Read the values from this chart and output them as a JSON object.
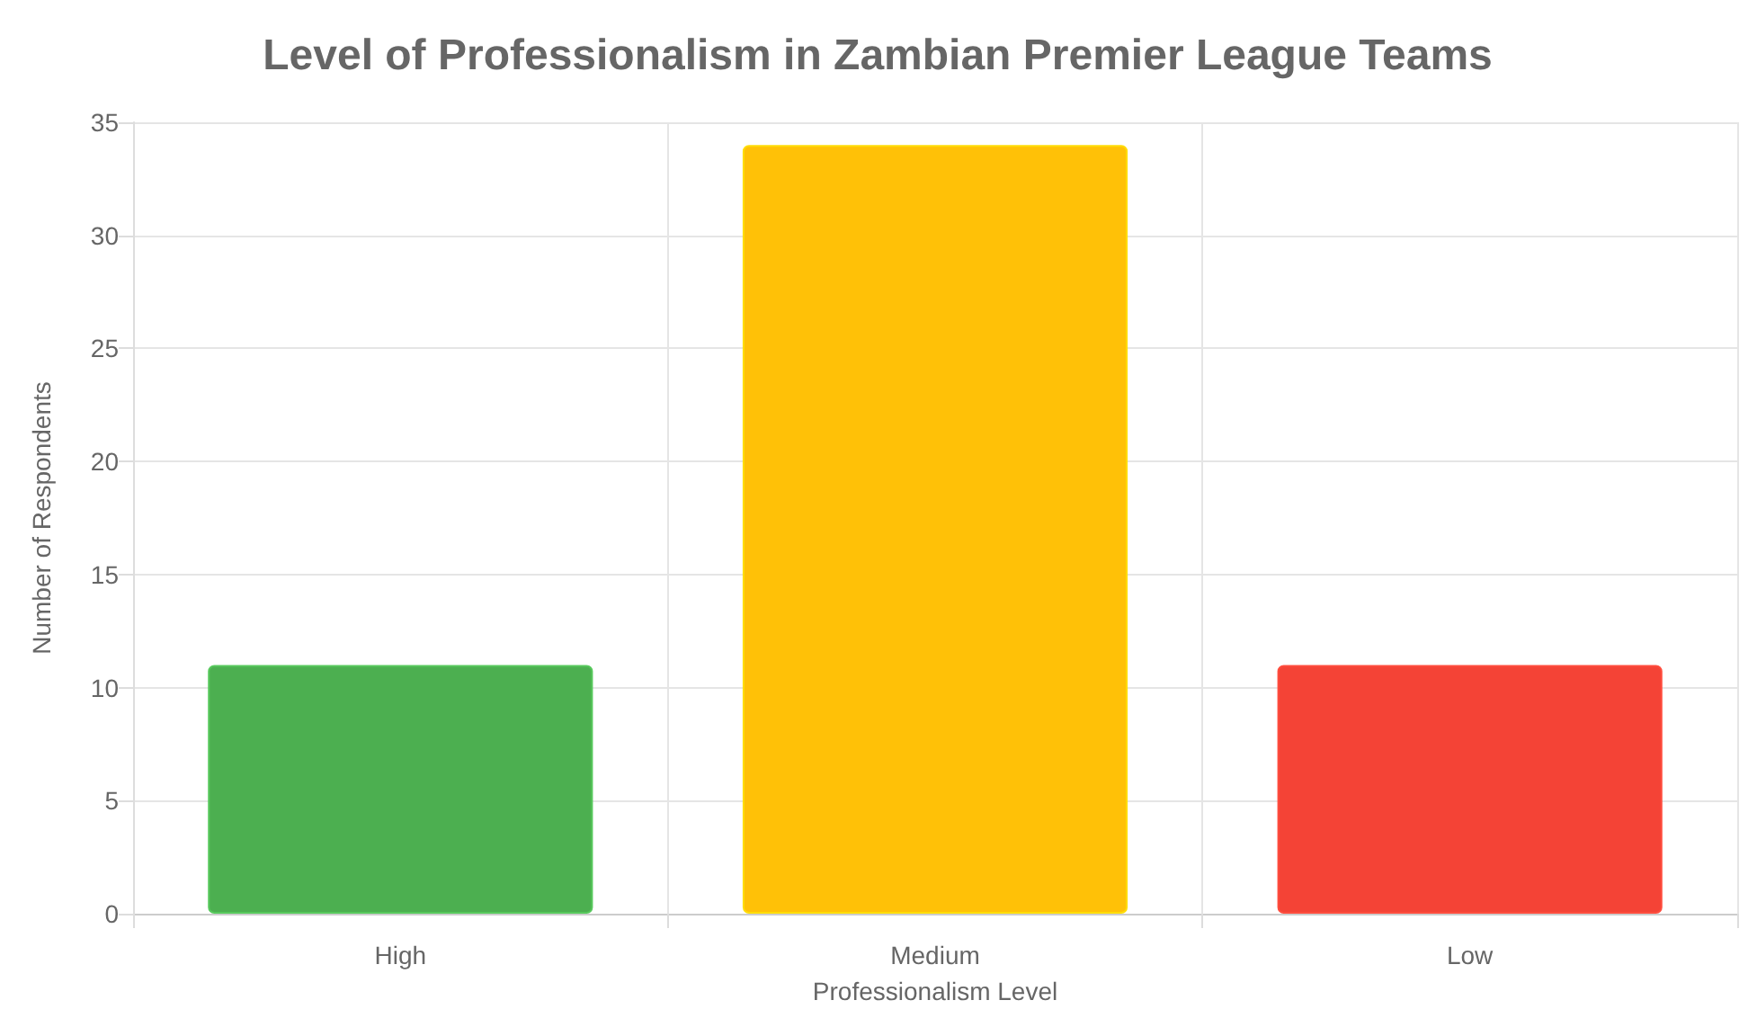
{
  "chart_data": {
    "type": "bar",
    "title": "Level of Professionalism in Zambian Premier League Teams",
    "categories": [
      "High",
      "Medium",
      "Low"
    ],
    "values": [
      11,
      34,
      11
    ],
    "colors": [
      "#4caf50",
      "#ffc107",
      "#f44336"
    ],
    "xlabel": "Professionalism Level",
    "ylabel": "Number of Respondents",
    "ylim": [
      0,
      35
    ],
    "yticks": [
      0,
      5,
      10,
      15,
      20,
      25,
      30,
      35
    ],
    "grid": true
  }
}
